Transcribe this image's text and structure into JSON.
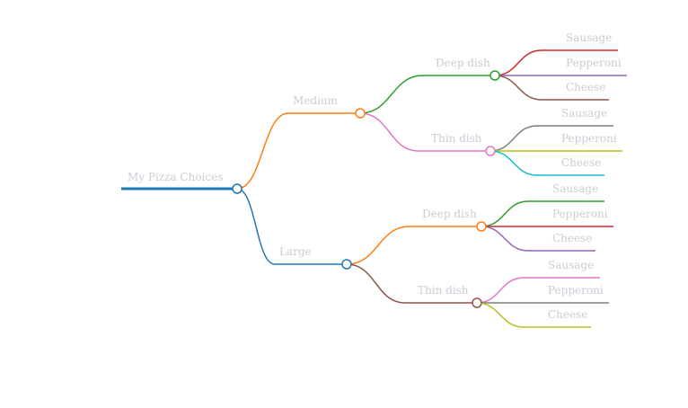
{
  "mindmap": {
    "label_color": "#c9cdd4",
    "root": {
      "label": "My Pizza Choices",
      "color": "#1f77b4",
      "children": [
        {
          "label": "Medium",
          "color": "#ff7f0e",
          "children": [
            {
              "label": "Deep dish",
              "color": "#2ca02c",
              "children": [
                {
                  "label": "Sausage",
                  "color": "#d62728"
                },
                {
                  "label": "Pepperoni",
                  "color": "#9467bd"
                },
                {
                  "label": "Cheese",
                  "color": "#8c564b"
                }
              ]
            },
            {
              "label": "Thin dish",
              "color": "#e377c2",
              "children": [
                {
                  "label": "Sausage",
                  "color": "#7f7f7f"
                },
                {
                  "label": "Pepperoni",
                  "color": "#bcbd22"
                },
                {
                  "label": "Cheese",
                  "color": "#17becf"
                }
              ]
            }
          ]
        },
        {
          "label": "Large",
          "color": "#1f77b4",
          "children": [
            {
              "label": "Deep dish",
              "color": "#ff7f0e",
              "children": [
                {
                  "label": "Sausage",
                  "color": "#2ca02c"
                },
                {
                  "label": "Pepperoni",
                  "color": "#d62728"
                },
                {
                  "label": "Cheese",
                  "color": "#9467bd"
                }
              ]
            },
            {
              "label": "Thin dish",
              "color": "#8c564b",
              "children": [
                {
                  "label": "Sausage",
                  "color": "#e377c2"
                },
                {
                  "label": "Pepperoni",
                  "color": "#7f7f7f"
                },
                {
                  "label": "Cheese",
                  "color": "#bcbd22"
                }
              ]
            }
          ]
        }
      ]
    }
  }
}
